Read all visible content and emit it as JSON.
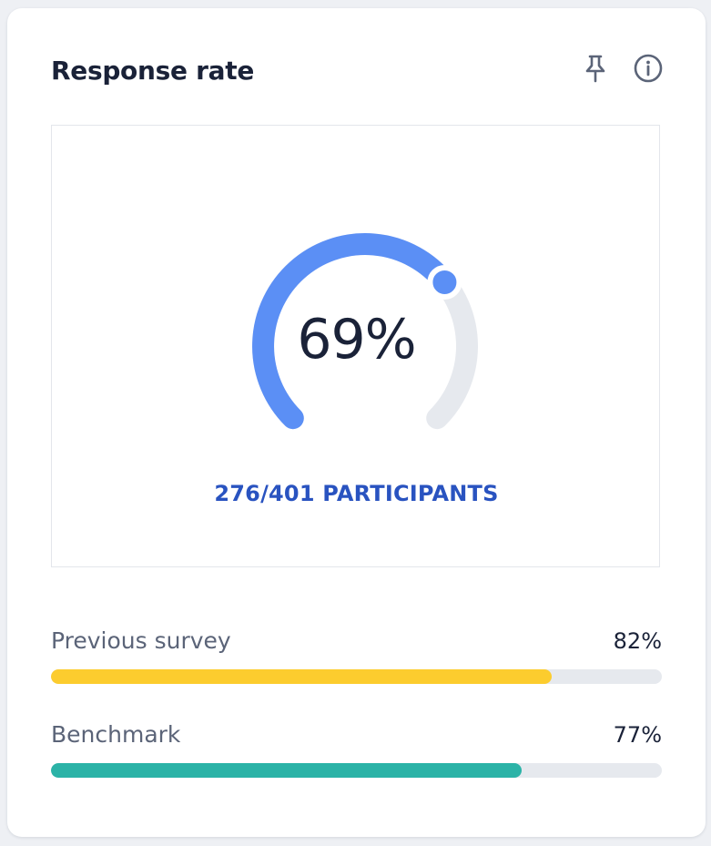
{
  "card": {
    "title": "Response rate"
  },
  "icons": {
    "pin": "pin-icon",
    "info": "info-icon"
  },
  "gauge": {
    "value_label": "69%",
    "fraction": 0.69,
    "participants_label": "276/401 PARTICIPANTS",
    "color": "#5b8ff5",
    "track_color": "#e6e9ee"
  },
  "comparisons": [
    {
      "label": "Previous survey",
      "value_label": "82%",
      "fraction": 0.82,
      "color": "#fccc2e"
    },
    {
      "label": "Benchmark",
      "value_label": "77%",
      "fraction": 0.77,
      "color": "#2bb3a7"
    }
  ]
}
